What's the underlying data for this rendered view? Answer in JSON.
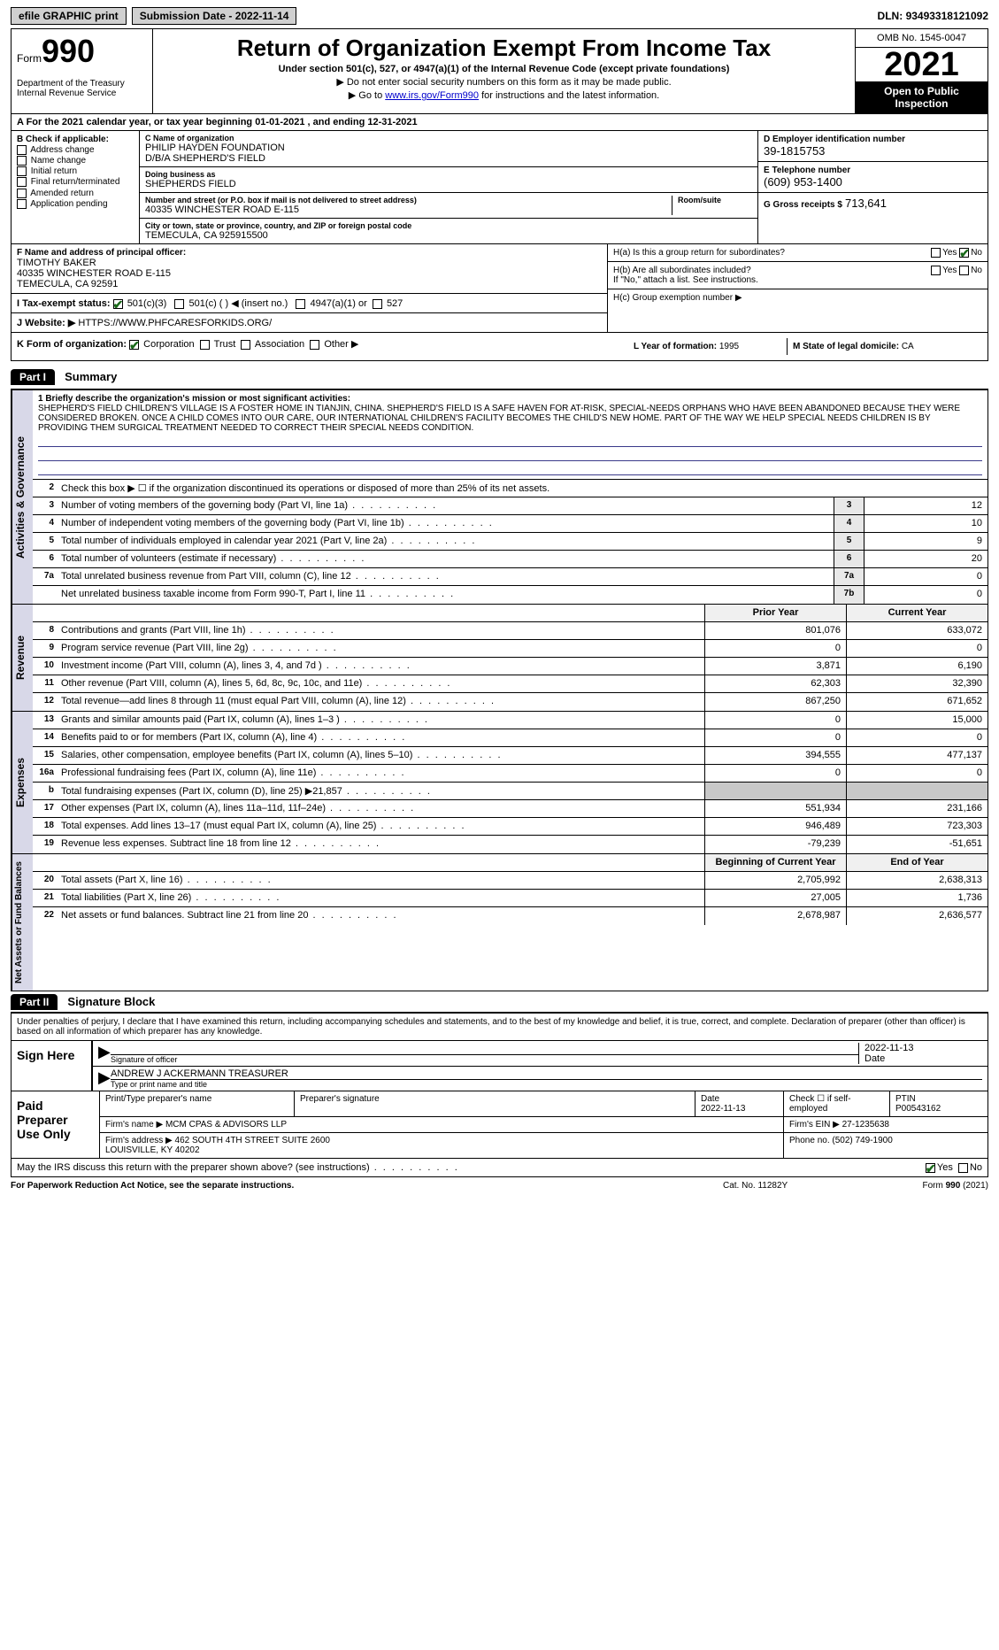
{
  "topbar": {
    "efile": "efile GRAPHIC print",
    "submission": "Submission Date - 2022-11-14",
    "dln_label": "DLN:",
    "dln": "93493318121092"
  },
  "header": {
    "form_prefix": "Form",
    "form_number": "990",
    "dept": "Department of the Treasury\nInternal Revenue Service",
    "title": "Return of Organization Exempt From Income Tax",
    "subtitle": "Under section 501(c), 527, or 4947(a)(1) of the Internal Revenue Code (except private foundations)",
    "arrow1": "▶ Do not enter social security numbers on this form as it may be made public.",
    "arrow2_pre": "▶ Go to ",
    "arrow2_link": "www.irs.gov/Form990",
    "arrow2_post": " for instructions and the latest information.",
    "omb": "OMB No. 1545-0047",
    "year": "2021",
    "inspect": "Open to Public Inspection"
  },
  "row_a": "A For the 2021 calendar year, or tax year beginning 01-01-2021    , and ending 12-31-2021",
  "section_b": {
    "title": "B Check if applicable:",
    "items": [
      "Address change",
      "Name change",
      "Initial return",
      "Final return/terminated",
      "Amended return",
      "Application pending"
    ]
  },
  "section_c": {
    "name_lbl": "C Name of organization",
    "name1": "PHILIP HAYDEN FOUNDATION",
    "name2": "D/B/A SHEPHERD'S FIELD",
    "dba_lbl": "Doing business as",
    "dba": "SHEPHERDS FIELD",
    "addr_lbl": "Number and street (or P.O. box if mail is not delivered to street address)",
    "room_lbl": "Room/suite",
    "addr": "40335 WINCHESTER ROAD E-115",
    "city_lbl": "City or town, state or province, country, and ZIP or foreign postal code",
    "city": "TEMECULA, CA  925915500"
  },
  "section_d": {
    "ein_lbl": "D Employer identification number",
    "ein": "39-1815753",
    "tel_lbl": "E Telephone number",
    "tel": "(609) 953-1400",
    "gross_lbl": "G Gross receipts $",
    "gross": "713,641"
  },
  "section_f": {
    "lbl": "F  Name and address of principal officer:",
    "name": "TIMOTHY BAKER",
    "addr1": "40335 WINCHESTER ROAD E-115",
    "addr2": "TEMECULA, CA  92591"
  },
  "section_i": {
    "lbl": "I  Tax-exempt status:",
    "opts": [
      "501(c)(3)",
      "501(c) (   ) ◀ (insert no.)",
      "4947(a)(1) or",
      "527"
    ]
  },
  "section_j": {
    "lbl": "J  Website: ▶",
    "url": "HTTPS://WWW.PHFCARESFORKIDS.ORG/"
  },
  "section_h": {
    "ha": "H(a)  Is this a group return for subordinates?",
    "hb": "H(b)  Are all subordinates included?",
    "hb_note": "If \"No,\" attach a list. See instructions.",
    "hc": "H(c)  Group exemption number ▶"
  },
  "section_k": {
    "lbl": "K Form of organization:",
    "opts": [
      "Corporation",
      "Trust",
      "Association",
      "Other ▶"
    ]
  },
  "section_l": {
    "lbl": "L Year of formation:",
    "val": "1995"
  },
  "section_m": {
    "lbl": "M State of legal domicile:",
    "val": "CA"
  },
  "part1": {
    "hdr": "Part I",
    "title": "Summary",
    "mission_lbl": "1  Briefly describe the organization's mission or most significant activities:",
    "mission": "SHEPHERD'S FIELD CHILDREN'S VILLAGE IS A FOSTER HOME IN TIANJIN, CHINA. SHEPHERD'S FIELD IS A SAFE HAVEN FOR AT-RISK, SPECIAL-NEEDS ORPHANS WHO HAVE BEEN ABANDONED BECAUSE THEY WERE CONSIDERED BROKEN. ONCE A CHILD COMES INTO OUR CARE, OUR INTERNATIONAL CHILDREN'S FACILITY BECOMES THE CHILD'S NEW HOME. PART OF THE WAY WE HELP SPECIAL NEEDS CHILDREN IS BY PROVIDING THEM SURGICAL TREATMENT NEEDED TO CORRECT THEIR SPECIAL NEEDS CONDITION.",
    "line2": "Check this box ▶ ☐  if the organization discontinued its operations or disposed of more than 25% of its net assets.",
    "activities": [
      {
        "n": "3",
        "d": "Number of voting members of the governing body (Part VI, line 1a)",
        "b": "3",
        "v": "12"
      },
      {
        "n": "4",
        "d": "Number of independent voting members of the governing body (Part VI, line 1b)",
        "b": "4",
        "v": "10"
      },
      {
        "n": "5",
        "d": "Total number of individuals employed in calendar year 2021 (Part V, line 2a)",
        "b": "5",
        "v": "9"
      },
      {
        "n": "6",
        "d": "Total number of volunteers (estimate if necessary)",
        "b": "6",
        "v": "20"
      },
      {
        "n": "7a",
        "d": "Total unrelated business revenue from Part VIII, column (C), line 12",
        "b": "7a",
        "v": "0"
      },
      {
        "n": "",
        "d": "Net unrelated business taxable income from Form 990-T, Part I, line 11",
        "b": "7b",
        "v": "0"
      }
    ],
    "prior_hdr": "Prior Year",
    "current_hdr": "Current Year",
    "revenue": [
      {
        "n": "8",
        "d": "Contributions and grants (Part VIII, line 1h)",
        "p": "801,076",
        "c": "633,072"
      },
      {
        "n": "9",
        "d": "Program service revenue (Part VIII, line 2g)",
        "p": "0",
        "c": "0"
      },
      {
        "n": "10",
        "d": "Investment income (Part VIII, column (A), lines 3, 4, and 7d )",
        "p": "3,871",
        "c": "6,190"
      },
      {
        "n": "11",
        "d": "Other revenue (Part VIII, column (A), lines 5, 6d, 8c, 9c, 10c, and 11e)",
        "p": "62,303",
        "c": "32,390"
      },
      {
        "n": "12",
        "d": "Total revenue—add lines 8 through 11 (must equal Part VIII, column (A), line 12)",
        "p": "867,250",
        "c": "671,652"
      }
    ],
    "expenses": [
      {
        "n": "13",
        "d": "Grants and similar amounts paid (Part IX, column (A), lines 1–3 )",
        "p": "0",
        "c": "15,000"
      },
      {
        "n": "14",
        "d": "Benefits paid to or for members (Part IX, column (A), line 4)",
        "p": "0",
        "c": "0"
      },
      {
        "n": "15",
        "d": "Salaries, other compensation, employee benefits (Part IX, column (A), lines 5–10)",
        "p": "394,555",
        "c": "477,137"
      },
      {
        "n": "16a",
        "d": "Professional fundraising fees (Part IX, column (A), line 11e)",
        "p": "0",
        "c": "0"
      },
      {
        "n": "b",
        "d": "Total fundraising expenses (Part IX, column (D), line 25) ▶21,857",
        "p": "",
        "c": "",
        "grey": true
      },
      {
        "n": "17",
        "d": "Other expenses (Part IX, column (A), lines 11a–11d, 11f–24e)",
        "p": "551,934",
        "c": "231,166"
      },
      {
        "n": "18",
        "d": "Total expenses. Add lines 13–17 (must equal Part IX, column (A), line 25)",
        "p": "946,489",
        "c": "723,303"
      },
      {
        "n": "19",
        "d": "Revenue less expenses. Subtract line 18 from line 12",
        "p": "-79,239",
        "c": "-51,651"
      }
    ],
    "beg_hdr": "Beginning of Current Year",
    "end_hdr": "End of Year",
    "netassets": [
      {
        "n": "20",
        "d": "Total assets (Part X, line 16)",
        "p": "2,705,992",
        "c": "2,638,313"
      },
      {
        "n": "21",
        "d": "Total liabilities (Part X, line 26)",
        "p": "27,005",
        "c": "1,736"
      },
      {
        "n": "22",
        "d": "Net assets or fund balances. Subtract line 21 from line 20",
        "p": "2,678,987",
        "c": "2,636,577"
      }
    ],
    "side_labels": {
      "activities": "Activities & Governance",
      "revenue": "Revenue",
      "expenses": "Expenses",
      "netassets": "Net Assets or Fund Balances"
    }
  },
  "part2": {
    "hdr": "Part II",
    "title": "Signature Block",
    "decl": "Under penalties of perjury, I declare that I have examined this return, including accompanying schedules and statements, and to the best of my knowledge and belief, it is true, correct, and complete. Declaration of preparer (other than officer) is based on all information of which preparer has any knowledge.",
    "sign_here": "Sign Here",
    "sig_officer_lbl": "Signature of officer",
    "sig_date": "2022-11-13",
    "sig_date_lbl": "Date",
    "sig_name": "ANDREW J ACKERMANN  TREASURER",
    "sig_name_lbl": "Type or print name and title",
    "paid_prep": "Paid Preparer Use Only",
    "prep_name_lbl": "Print/Type preparer's name",
    "prep_sig_lbl": "Preparer's signature",
    "prep_date_lbl": "Date",
    "prep_date": "2022-11-13",
    "prep_selfemp": "Check ☐ if self-employed",
    "ptin_lbl": "PTIN",
    "ptin": "P00543162",
    "firm_name_lbl": "Firm's name    ▶",
    "firm_name": "MCM CPAS & ADVISORS LLP",
    "firm_ein_lbl": "Firm's EIN ▶",
    "firm_ein": "27-1235638",
    "firm_addr_lbl": "Firm's address ▶",
    "firm_addr": "462 SOUTH 4TH STREET SUITE 2600\nLOUISVILLE, KY  40202",
    "firm_phone_lbl": "Phone no.",
    "firm_phone": "(502) 749-1900",
    "discuss": "May the IRS discuss this return with the preparer shown above? (see instructions)"
  },
  "footer": {
    "left": "For Paperwork Reduction Act Notice, see the separate instructions.",
    "mid": "Cat. No. 11282Y",
    "right_pre": "Form ",
    "right_form": "990",
    "right_post": " (2021)"
  }
}
